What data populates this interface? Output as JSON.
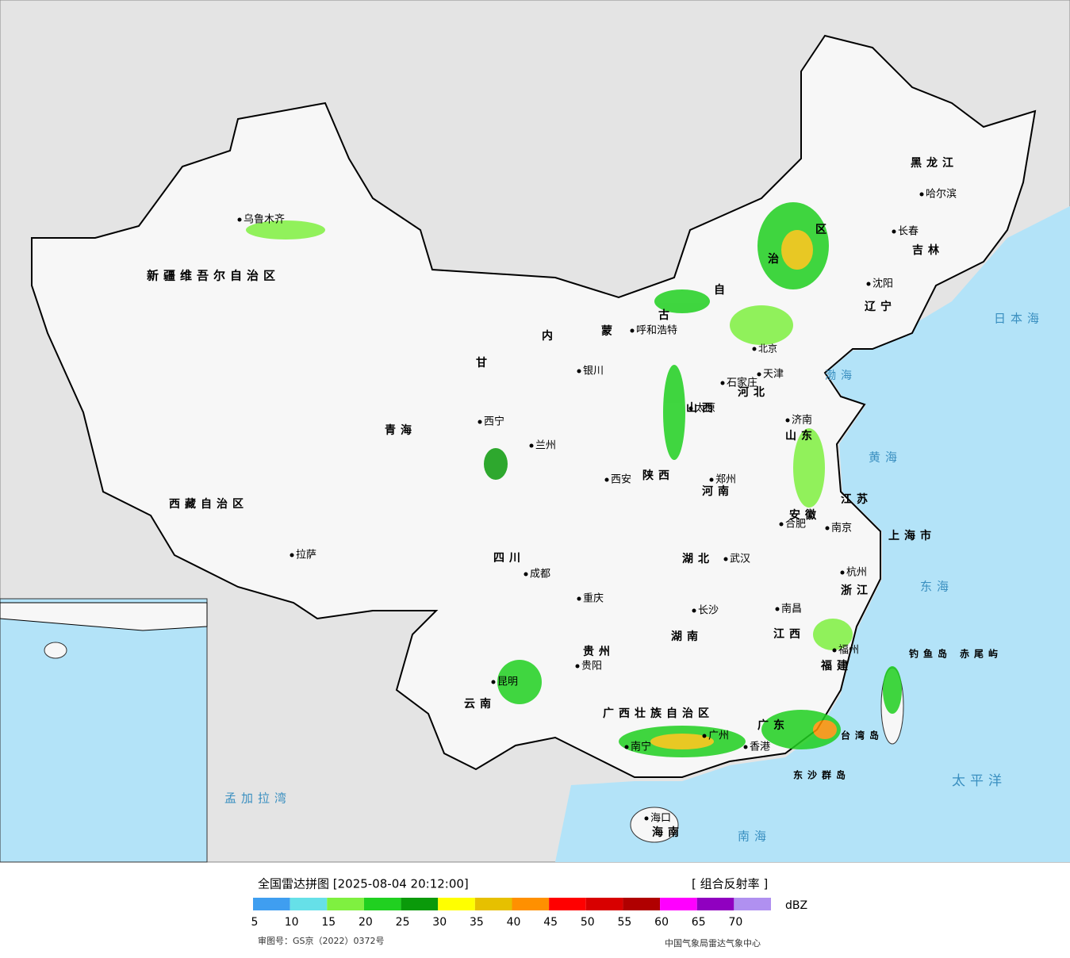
{
  "legend": {
    "title": "全国雷达拼图 [2025-08-04 20:12:00]",
    "product": "[ 组合反射率 ]",
    "unit": "dBZ",
    "ticks": [
      5,
      10,
      15,
      20,
      25,
      30,
      35,
      40,
      45,
      50,
      55,
      60,
      65,
      70
    ],
    "colors": [
      "#3f9ef0",
      "#66e0e8",
      "#7ff040",
      "#20d020",
      "#0a9a0a",
      "#ffff00",
      "#e6c000",
      "#ff9000",
      "#ff0000",
      "#d80000",
      "#b00000",
      "#ff00ff",
      "#9000c0",
      "#b090f0"
    ]
  },
  "footer": {
    "approval": "审图号：GS京（2022）0372号",
    "source": "中国气象局雷达气象中心"
  },
  "labels": [
    "乌鲁木齐",
    "新疆维吾尔自治区",
    "西藏自治区",
    "拉萨",
    "青海",
    "西宁",
    "兰州",
    "甘",
    "内",
    "蒙",
    "古",
    "自",
    "治",
    "区",
    "呼和浩特",
    "银川",
    "太原",
    "石家庄",
    "北京",
    "天津",
    "济南",
    "郑州",
    "西安",
    "成都",
    "重庆",
    "四川",
    "贵阳",
    "昆明",
    "云南",
    "南宁",
    "广州",
    "香港",
    "海口",
    "海南",
    "长沙",
    "武汉",
    "南昌",
    "合肥",
    "南京",
    "上海市",
    "杭州",
    "福州",
    "台湾岛",
    "沈阳",
    "长春",
    "哈尔滨",
    "黑龙江",
    "吉林",
    "辽宁",
    "日本海",
    "黄海",
    "东海",
    "太平洋",
    "南海",
    "渤海",
    "孟加拉湾",
    "钓鱼岛",
    "赤尾屿",
    "东沙群岛",
    "湖南",
    "湖北",
    "广东",
    "江西",
    "福建",
    "浙江",
    "江苏",
    "安徽",
    "山东",
    "河南",
    "河北",
    "山西",
    "陕西",
    "贵州",
    "广西壮族自治区"
  ]
}
